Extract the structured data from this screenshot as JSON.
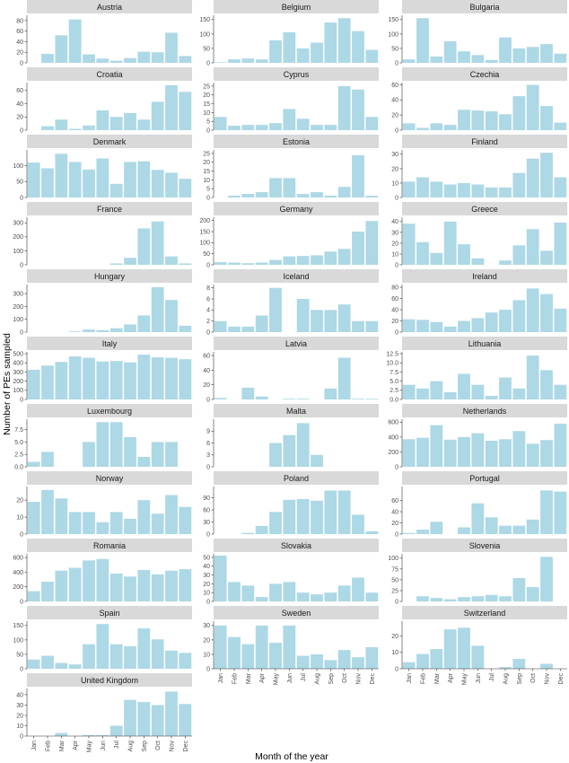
{
  "chart_data": {
    "type": "bar",
    "xlabel": "Month of the year",
    "ylabel": "Number of PEs sampled",
    "bar_color": "#add8e6",
    "strip_color": "#d9d9d9",
    "months": [
      "Jan",
      "Feb",
      "Mar",
      "Apr",
      "May",
      "Jun",
      "Jul",
      "Aug",
      "Sep",
      "Oct",
      "Nov",
      "Dec"
    ],
    "panels": [
      {
        "name": "Austria",
        "ylim": [
          0,
          90
        ],
        "yticks": [
          0,
          20,
          40,
          60,
          80
        ],
        "values": [
          0,
          17,
          52,
          82,
          16,
          8,
          4,
          9,
          21,
          20,
          57,
          13
        ]
      },
      {
        "name": "Belgium",
        "ylim": [
          0,
          165
        ],
        "yticks": [
          0,
          50,
          100,
          150
        ],
        "values": [
          2,
          12,
          15,
          12,
          78,
          106,
          50,
          70,
          140,
          155,
          110,
          45
        ]
      },
      {
        "name": "Bulgaria",
        "ylim": [
          0,
          165
        ],
        "yticks": [
          0,
          50,
          100,
          150
        ],
        "values": [
          12,
          155,
          22,
          75,
          40,
          27,
          10,
          88,
          50,
          55,
          65,
          32
        ]
      },
      {
        "name": "Croatia",
        "ylim": [
          0,
          72
        ],
        "yticks": [
          0,
          20,
          40,
          60
        ],
        "values": [
          0,
          6,
          16,
          2,
          7,
          30,
          20,
          26,
          16,
          43,
          68,
          58
        ]
      },
      {
        "name": "Cyprus",
        "ylim": [
          0,
          27
        ],
        "yticks": [
          0,
          5,
          10,
          15,
          20,
          25
        ],
        "values": [
          7.5,
          2.5,
          3,
          3,
          4,
          12,
          6.5,
          3,
          3,
          25,
          23,
          7.5
        ]
      },
      {
        "name": "Czechia",
        "ylim": [
          0,
          63
        ],
        "yticks": [
          0,
          20,
          40,
          60
        ],
        "values": [
          9,
          3,
          9,
          7,
          27,
          26,
          25,
          21,
          45,
          60,
          32,
          10
        ]
      },
      {
        "name": "Denmark",
        "ylim": [
          0,
          150
        ],
        "yticks": [
          0,
          50,
          100
        ],
        "values": [
          110,
          92,
          138,
          112,
          88,
          123,
          43,
          112,
          114,
          87,
          78,
          59
        ]
      },
      {
        "name": "Estonia",
        "ylim": [
          0,
          27
        ],
        "yticks": [
          0,
          5,
          10,
          15,
          20,
          25
        ],
        "values": [
          0,
          1,
          2,
          3,
          11,
          11,
          2,
          3,
          1,
          6,
          24,
          1
        ]
      },
      {
        "name": "Finland",
        "ylim": [
          0,
          33
        ],
        "yticks": [
          0,
          10,
          20,
          30
        ],
        "values": [
          11,
          14,
          11,
          9,
          10,
          9,
          7,
          7,
          17,
          27,
          31,
          14
        ]
      },
      {
        "name": "France",
        "ylim": [
          0,
          340
        ],
        "yticks": [
          0,
          100,
          200,
          300
        ],
        "values": [
          0,
          0,
          0,
          0,
          0,
          0,
          10,
          50,
          260,
          310,
          60,
          10
        ]
      },
      {
        "name": "Germany",
        "ylim": [
          0,
          215
        ],
        "yticks": [
          0,
          50,
          100,
          150,
          200
        ],
        "values": [
          12,
          10,
          7,
          10,
          22,
          38,
          40,
          43,
          60,
          72,
          150,
          198
        ]
      },
      {
        "name": "Greece",
        "ylim": [
          0,
          44
        ],
        "yticks": [
          0,
          10,
          20,
          30,
          40
        ],
        "values": [
          38,
          21,
          11,
          40,
          19,
          6,
          0,
          4,
          18,
          33,
          13,
          39
        ]
      },
      {
        "name": "Hungary",
        "ylim": [
          0,
          370
        ],
        "yticks": [
          0,
          100,
          200,
          300
        ],
        "values": [
          0,
          0,
          0,
          5,
          20,
          15,
          30,
          60,
          130,
          350,
          250,
          50
        ]
      },
      {
        "name": "Iceland",
        "ylim": [
          0,
          8.6
        ],
        "yticks": [
          0,
          2,
          4,
          6,
          8
        ],
        "values": [
          2,
          1,
          1,
          3,
          8,
          0,
          6,
          4,
          4,
          5,
          2,
          2
        ]
      },
      {
        "name": "Ireland",
        "ylim": [
          0,
          85
        ],
        "yticks": [
          0,
          20,
          40,
          60,
          80
        ],
        "values": [
          23,
          22,
          18,
          10,
          20,
          25,
          35,
          40,
          57,
          78,
          68,
          42
        ]
      },
      {
        "name": "Italy",
        "ylim": [
          0,
          520
        ],
        "yticks": [
          0,
          100,
          200,
          300,
          400,
          500
        ],
        "values": [
          325,
          370,
          410,
          470,
          455,
          415,
          420,
          405,
          490,
          460,
          455,
          440
        ]
      },
      {
        "name": "Latvia",
        "ylim": [
          0,
          65
        ],
        "yticks": [
          0,
          20,
          40,
          60
        ],
        "values": [
          2,
          0,
          16,
          4,
          0,
          1,
          1,
          0,
          15,
          57,
          1,
          1
        ]
      },
      {
        "name": "Lithuania",
        "ylim": [
          0,
          13
        ],
        "yticks": [
          0,
          2.5,
          5.0,
          7.5,
          10.0,
          12.5
        ],
        "values": [
          4,
          3,
          5,
          2,
          7,
          4,
          1,
          6,
          3,
          12,
          8,
          4
        ]
      },
      {
        "name": "Luxembourg",
        "ylim": [
          0,
          9.6
        ],
        "yticks": [
          0,
          2.5,
          5.0,
          7.5
        ],
        "values": [
          1,
          3,
          0,
          0,
          5,
          9,
          9,
          6,
          2,
          5,
          5,
          0
        ]
      },
      {
        "name": "Malta",
        "ylim": [
          0,
          12
        ],
        "yticks": [
          0,
          3,
          6,
          9
        ],
        "values": [
          0,
          0,
          0,
          0,
          6,
          8,
          11,
          3,
          0,
          0,
          0,
          0
        ]
      },
      {
        "name": "Netherlands",
        "ylim": [
          0,
          640
        ],
        "yticks": [
          0,
          200,
          400,
          600
        ],
        "values": [
          370,
          390,
          560,
          365,
          400,
          450,
          350,
          370,
          480,
          310,
          360,
          580
        ]
      },
      {
        "name": "Norway",
        "ylim": [
          0,
          28
        ],
        "yticks": [
          0,
          10,
          20
        ],
        "values": [
          19,
          26,
          21,
          13,
          13,
          7,
          13,
          9,
          20,
          12,
          23,
          16
        ]
      },
      {
        "name": "Poland",
        "ylim": [
          0,
          118
        ],
        "yticks": [
          0,
          30,
          60,
          90
        ],
        "values": [
          0,
          0,
          3,
          20,
          55,
          85,
          87,
          83,
          108,
          108,
          48,
          7
        ]
      },
      {
        "name": "Portugal",
        "ylim": [
          0,
          85
        ],
        "yticks": [
          0,
          20,
          40,
          60
        ],
        "values": [
          2,
          8,
          22,
          0,
          12,
          55,
          30,
          15,
          15,
          26,
          78,
          76
        ]
      },
      {
        "name": "Romania",
        "ylim": [
          0,
          650
        ],
        "yticks": [
          0,
          200,
          400,
          600
        ],
        "values": [
          140,
          270,
          420,
          460,
          560,
          580,
          380,
          340,
          430,
          370,
          420,
          440
        ]
      },
      {
        "name": "Slovakia",
        "ylim": [
          0,
          54
        ],
        "yticks": [
          0,
          10,
          20,
          30,
          40,
          50
        ],
        "values": [
          52,
          22,
          18,
          5,
          20,
          22,
          10,
          8,
          10,
          18,
          27,
          10
        ]
      },
      {
        "name": "Slovenia",
        "ylim": [
          0,
          110
        ],
        "yticks": [
          0,
          25,
          50,
          75,
          100
        ],
        "values": [
          0,
          12,
          8,
          5,
          10,
          12,
          15,
          12,
          54,
          33,
          103,
          0
        ]
      },
      {
        "name": "Spain",
        "ylim": [
          0,
          165
        ],
        "yticks": [
          0,
          50,
          100,
          150
        ],
        "values": [
          32,
          45,
          20,
          15,
          85,
          155,
          85,
          78,
          140,
          102,
          63,
          55
        ]
      },
      {
        "name": "Sweden",
        "ylim": [
          0,
          33
        ],
        "yticks": [
          0,
          10,
          20,
          30
        ],
        "values": [
          30,
          22,
          17,
          30,
          18,
          30,
          9,
          10,
          6,
          13,
          8,
          15
        ]
      },
      {
        "name": "Switzerland",
        "ylim": [
          0,
          29
        ],
        "yticks": [
          0,
          10,
          20
        ],
        "values": [
          4,
          9,
          12,
          24,
          25,
          14,
          0,
          1,
          6,
          0,
          3,
          0
        ]
      },
      {
        "name": "United Kingdom",
        "ylim": [
          0,
          46
        ],
        "yticks": [
          0,
          10,
          20,
          30,
          40
        ],
        "values": [
          0,
          0,
          3,
          0,
          1,
          1,
          10,
          35,
          33,
          30,
          43,
          31
        ]
      }
    ]
  }
}
